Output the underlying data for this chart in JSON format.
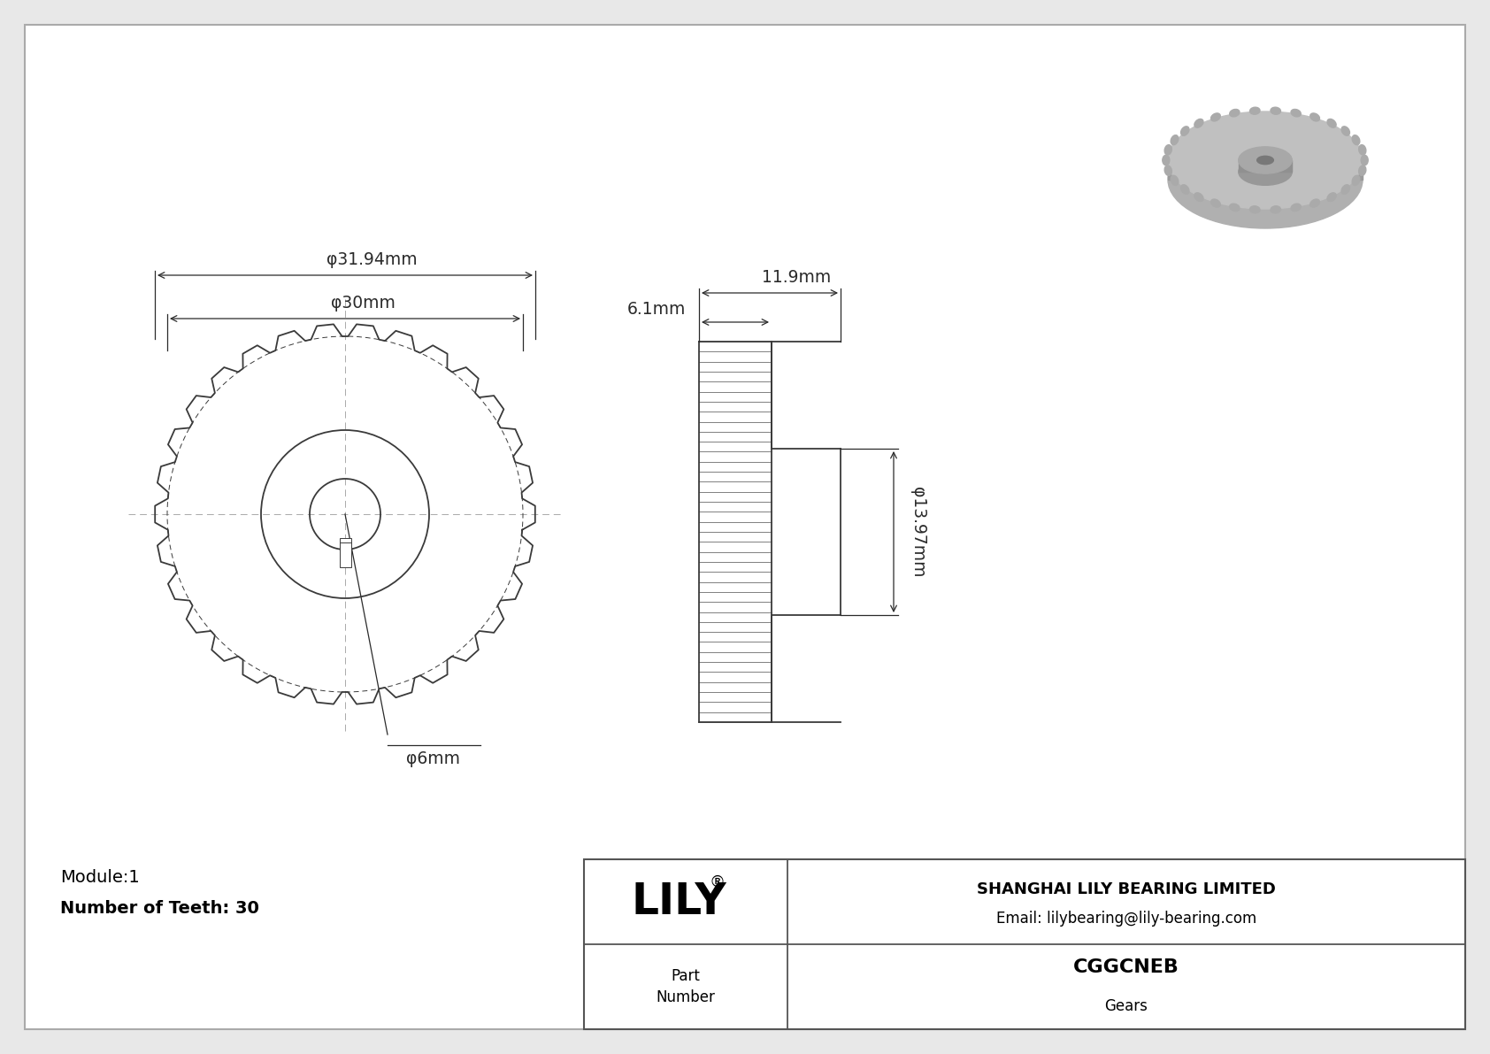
{
  "bg_color": "#e8e8e8",
  "drawing_bg": "#ffffff",
  "line_color": "#3a3a3a",
  "dim_color": "#2a2a2a",
  "title_company": "SHANGHAI LILY BEARING LIMITED",
  "title_email": "Email: lilybearing@lily-bearing.com",
  "part_number": "CGGCNEB",
  "part_category": "Gears",
  "module": "Module:1",
  "teeth": "Number of Teeth: 30",
  "dim_outer": "φ31.94mm",
  "dim_pitch": "φ30mm",
  "dim_bore": "φ6mm",
  "dim_hub_dia": "φ13.97mm",
  "dim_width1": "6.1mm",
  "dim_width2": "11.9mm",
  "num_teeth": 30
}
